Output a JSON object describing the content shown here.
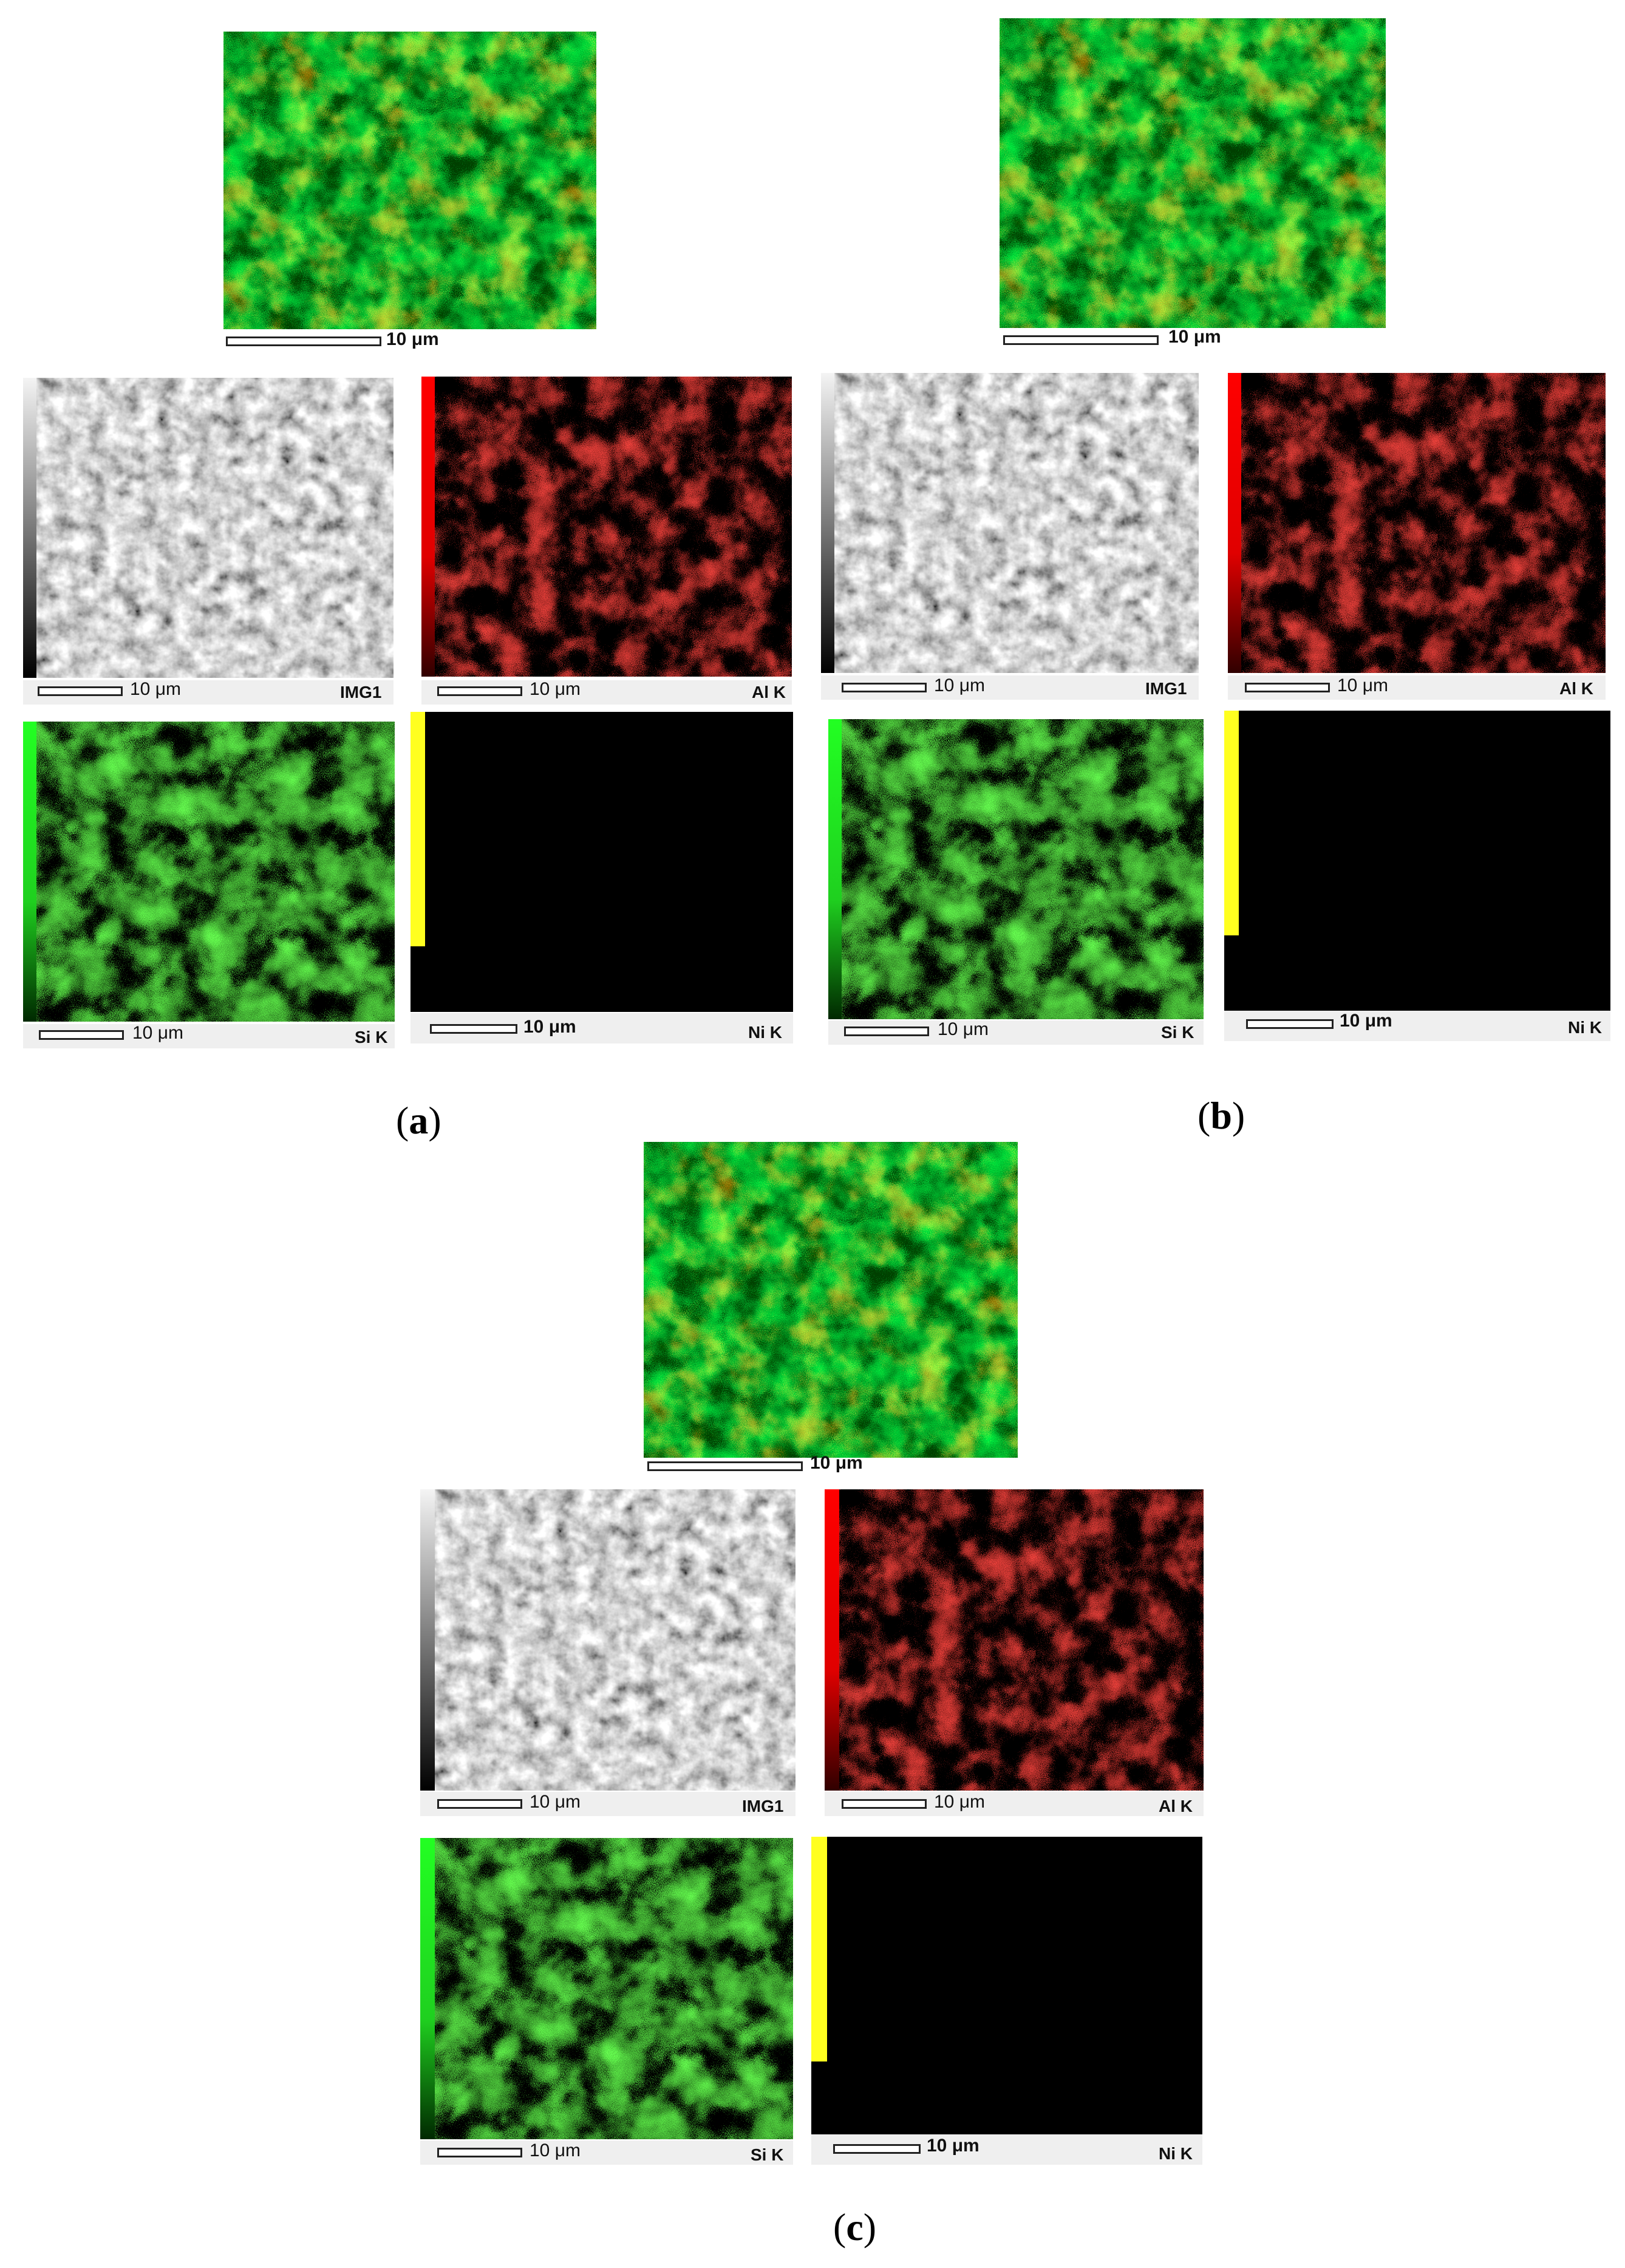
{
  "panels": [
    {
      "label_open": "(",
      "label_letter": "a",
      "label_close": ")",
      "overlay_scale": "10 μm",
      "maps": [
        {
          "element": "IMG1",
          "scale": "10 μm"
        },
        {
          "element": "Al K",
          "scale": "10 μm"
        },
        {
          "element": "Si K",
          "scale": "10 μm"
        },
        {
          "element": "Ni K",
          "scale": "10 μm"
        }
      ]
    },
    {
      "label_open": "(",
      "label_letter": "b",
      "label_close": ")",
      "overlay_scale": "10 μm",
      "maps": [
        {
          "element": "IMG1",
          "scale": "10 μm"
        },
        {
          "element": "Al K",
          "scale": "10 μm"
        },
        {
          "element": "Si K",
          "scale": "10 μm"
        },
        {
          "element": "Ni K",
          "scale": "10 μm"
        }
      ]
    },
    {
      "label_open": "(",
      "label_letter": "c",
      "label_close": ")",
      "overlay_scale": "10 μm",
      "maps": [
        {
          "element": "IMG1",
          "scale": "10 μm"
        },
        {
          "element": "Al K",
          "scale": "10 μm"
        },
        {
          "element": "Si K",
          "scale": "10 μm"
        },
        {
          "element": "Ni K",
          "scale": "10 μm"
        }
      ]
    }
  ],
  "colors": {
    "al_map": "#c81414",
    "si_map": "#28a81e",
    "ni_dots": "#e6e63c",
    "overlay_green": "#3ea82a",
    "overlay_yellow": "#c8b428"
  }
}
